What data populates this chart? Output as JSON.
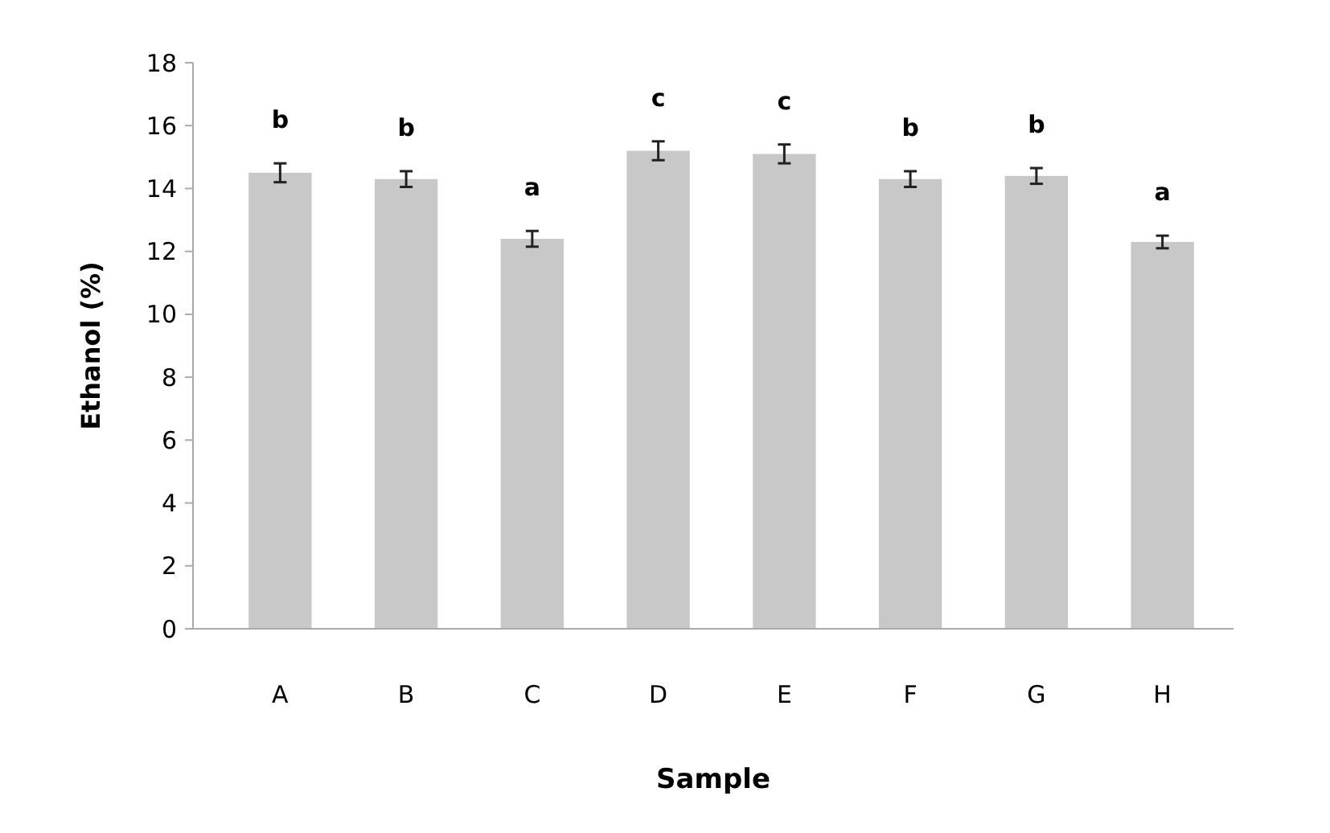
{
  "chart_data": {
    "type": "bar",
    "xlabel": "Sample",
    "ylabel": "Ethanol (%)",
    "categories": [
      "A",
      "B",
      "C",
      "D",
      "E",
      "F",
      "G",
      "H"
    ],
    "values": [
      14.5,
      14.3,
      12.4,
      15.2,
      15.1,
      14.3,
      14.4,
      12.3
    ],
    "errors": [
      0.3,
      0.25,
      0.25,
      0.3,
      0.3,
      0.25,
      0.25,
      0.2
    ],
    "color": "#c8c8c8",
    "ylim": [
      0,
      18
    ],
    "yticks": [
      0,
      2,
      4,
      6,
      8,
      10,
      12,
      14,
      16,
      18
    ],
    "annotations": [
      "b",
      "b",
      "a",
      "c",
      "c",
      "b",
      "b",
      "a"
    ]
  }
}
